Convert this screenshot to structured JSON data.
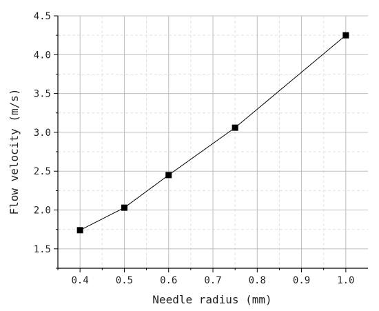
{
  "chart_data": {
    "type": "line",
    "title": "",
    "xlabel": "Needle radius (mm)",
    "ylabel": "Flow velocity (m/s)",
    "x": [
      0.4,
      0.5,
      0.6,
      0.75,
      1.0
    ],
    "series": [
      {
        "values": [
          1.74,
          2.03,
          2.45,
          3.06,
          4.25
        ],
        "color": "#000000",
        "marker": "square"
      }
    ],
    "xlim": [
      0.35,
      1.05
    ],
    "ylim": [
      1.25,
      4.5
    ],
    "xticks": [
      "0.4",
      "0.5",
      "0.6",
      "0.7",
      "0.8",
      "0.9",
      "1.0"
    ],
    "yticks": [
      "1.5",
      "2.0",
      "2.5",
      "3.0",
      "3.5",
      "4.0",
      "4.5"
    ],
    "major_grid": true,
    "minor_grid": true,
    "grid_major_color": "#bdbdbd",
    "grid_minor_color": "#e1e1e1"
  }
}
